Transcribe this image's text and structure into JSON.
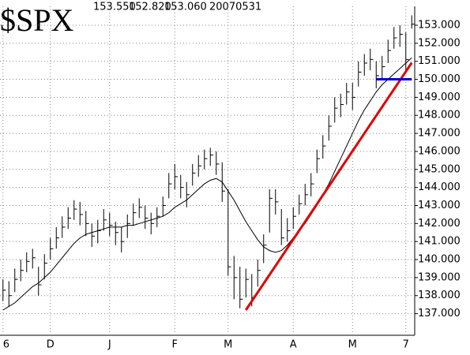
{
  "chart_data": {
    "type": "hlc",
    "title": "$SPX",
    "quote": [
      {
        "value": 153.55,
        "label": "153.550"
      },
      {
        "value": 152.82,
        "label": "152.820"
      },
      {
        "value": 153.06,
        "label": "153.060"
      }
    ],
    "date": "20070531",
    "categories": [
      "6",
      null,
      null,
      null,
      null,
      null,
      null,
      null,
      "D",
      null,
      null,
      null,
      null,
      null,
      null,
      null,
      null,
      null,
      "J",
      null,
      null,
      null,
      null,
      null,
      null,
      null,
      null,
      null,
      null,
      "F",
      null,
      null,
      null,
      null,
      null,
      null,
      null,
      null,
      "M",
      null,
      null,
      null,
      null,
      null,
      null,
      null,
      null,
      null,
      null,
      "A",
      null,
      null,
      null,
      null,
      null,
      null,
      null,
      null,
      null,
      "M",
      null,
      null,
      null,
      null,
      null,
      null,
      null,
      null,
      "7",
      null
    ],
    "ylim": [
      135.8,
      154.05
    ],
    "yticks": [
      {
        "value": 137,
        "label": "137.000"
      },
      {
        "value": 138,
        "label": "138.000"
      },
      {
        "value": 139,
        "label": "139.000"
      },
      {
        "value": 140,
        "label": "140.000"
      },
      {
        "value": 141,
        "label": "141.000"
      },
      {
        "value": 142,
        "label": "142.000"
      },
      {
        "value": 143,
        "label": "143.000"
      },
      {
        "value": 144,
        "label": "144.000"
      },
      {
        "value": 145,
        "label": "145.000"
      },
      {
        "value": 146,
        "label": "146.000"
      },
      {
        "value": 147,
        "label": "147.000"
      },
      {
        "value": 148,
        "label": "148.000"
      },
      {
        "value": 149,
        "label": "149.000"
      },
      {
        "value": 150,
        "label": "150.000"
      },
      {
        "value": 151,
        "label": "151.000"
      },
      {
        "value": 152,
        "label": "152.000"
      },
      {
        "value": 153,
        "label": "153.000"
      }
    ],
    "grid": true,
    "series": [
      {
        "type": "hlc",
        "color": "#000000",
        "high": [
          138.9,
          138.8,
          139.5,
          140.0,
          140.4,
          140.6,
          139.6,
          140.3,
          141.2,
          141.8,
          142.4,
          142.9,
          143.3,
          143.2,
          142.7,
          142.0,
          142.2,
          142.8,
          142.6,
          142.1,
          141.8,
          142.5,
          143.1,
          143.4,
          143.0,
          142.6,
          142.9,
          143.5,
          144.8,
          145.3,
          144.7,
          144.3,
          145.3,
          145.8,
          146.1,
          146.2,
          146.0,
          145.4,
          143.9,
          140.2,
          139.6,
          139.5,
          139.2,
          140.0,
          141.4,
          143.9,
          143.9,
          142.8,
          142.3,
          142.9,
          143.6,
          144.2,
          144.8,
          146.1,
          146.9,
          148.0,
          149.0,
          149.2,
          149.8,
          149.8,
          151.0,
          151.4,
          151.7,
          151.0,
          151.3,
          152.2,
          152.9,
          153.0,
          152.6,
          153.55
        ],
        "low": [
          137.7,
          137.4,
          138.2,
          138.8,
          139.3,
          139.5,
          138.0,
          138.9,
          140.0,
          140.6,
          141.2,
          141.7,
          142.2,
          141.9,
          141.3,
          140.7,
          140.9,
          141.6,
          141.3,
          140.8,
          140.4,
          141.2,
          141.9,
          142.3,
          141.7,
          141.4,
          141.8,
          142.4,
          143.4,
          143.9,
          143.4,
          142.9,
          144.1,
          144.6,
          145.0,
          145.2,
          144.7,
          143.2,
          139.1,
          137.8,
          137.3,
          137.9,
          137.4,
          138.5,
          139.8,
          141.5,
          142.5,
          140.8,
          141.0,
          141.7,
          142.5,
          143.0,
          143.5,
          144.8,
          145.6,
          146.6,
          147.6,
          147.9,
          148.6,
          148.3,
          149.6,
          150.2,
          150.5,
          149.5,
          150.0,
          150.9,
          151.7,
          151.8,
          150.4,
          152.82
        ],
        "close": [
          138.3,
          138.0,
          138.9,
          139.4,
          139.9,
          140.1,
          138.6,
          139.8,
          140.6,
          141.2,
          141.8,
          142.3,
          142.8,
          142.5,
          142.0,
          141.3,
          141.6,
          142.2,
          141.9,
          141.5,
          141.0,
          142.0,
          142.6,
          142.9,
          142.3,
          142.0,
          142.4,
          143.0,
          144.2,
          144.6,
          144.0,
          143.6,
          144.8,
          145.2,
          145.6,
          145.8,
          145.3,
          143.8,
          139.6,
          139.0,
          137.8,
          138.9,
          137.9,
          139.4,
          140.8,
          143.4,
          143.2,
          141.2,
          141.6,
          142.4,
          143.1,
          143.6,
          144.2,
          145.6,
          146.3,
          147.4,
          148.4,
          148.6,
          149.3,
          149.0,
          150.4,
          150.9,
          151.1,
          150.2,
          150.7,
          151.6,
          152.3,
          152.5,
          151.1,
          153.06
        ]
      },
      {
        "type": "line",
        "color": "#000000",
        "line_width": 1,
        "values": [
          137.2,
          137.4,
          137.6,
          137.9,
          138.2,
          138.5,
          138.7,
          139.0,
          139.3,
          139.7,
          140.1,
          140.5,
          140.9,
          141.2,
          141.4,
          141.5,
          141.6,
          141.7,
          141.8,
          141.8,
          141.8,
          141.9,
          141.9,
          142.0,
          142.1,
          142.2,
          142.3,
          142.4,
          142.6,
          142.9,
          143.1,
          143.3,
          143.6,
          143.9,
          144.2,
          144.4,
          144.5,
          144.3,
          143.8,
          143.3,
          142.7,
          142.1,
          141.6,
          141.1,
          140.7,
          140.5,
          140.4,
          140.5,
          140.8,
          141.2,
          141.6,
          142.0,
          142.5,
          143.0,
          143.6,
          144.2,
          144.9,
          145.6,
          146.3,
          147.0,
          147.7,
          148.3,
          148.8,
          149.3,
          149.7,
          150.0,
          150.3,
          150.6,
          150.9,
          151.2
        ]
      },
      {
        "type": "line",
        "color": "#e00000",
        "line_width": 3,
        "values": [
          null,
          null,
          null,
          null,
          null,
          null,
          null,
          null,
          null,
          null,
          null,
          null,
          null,
          null,
          null,
          null,
          null,
          null,
          null,
          null,
          null,
          null,
          null,
          null,
          null,
          null,
          null,
          null,
          null,
          null,
          null,
          null,
          null,
          null,
          null,
          null,
          null,
          null,
          null,
          null,
          null,
          137.2,
          137.69,
          138.18,
          138.67,
          139.16,
          139.65,
          140.14,
          140.63,
          141.12,
          141.61,
          142.1,
          142.59,
          143.08,
          143.57,
          144.06,
          144.55,
          145.04,
          145.53,
          146.02,
          146.51,
          147.0,
          147.49,
          147.98,
          148.47,
          148.96,
          149.45,
          149.94,
          150.43,
          150.92
        ]
      },
      {
        "type": "line",
        "color": "#0000cc",
        "line_width": 3,
        "values": [
          null,
          null,
          null,
          null,
          null,
          null,
          null,
          null,
          null,
          null,
          null,
          null,
          null,
          null,
          null,
          null,
          null,
          null,
          null,
          null,
          null,
          null,
          null,
          null,
          null,
          null,
          null,
          null,
          null,
          null,
          null,
          null,
          null,
          null,
          null,
          null,
          null,
          null,
          null,
          null,
          null,
          null,
          null,
          null,
          null,
          null,
          null,
          null,
          null,
          null,
          null,
          null,
          null,
          null,
          null,
          null,
          null,
          null,
          null,
          null,
          null,
          null,
          null,
          150.0,
          150.0,
          150.0,
          150.0,
          150.0,
          150.0,
          150.0
        ]
      }
    ]
  }
}
